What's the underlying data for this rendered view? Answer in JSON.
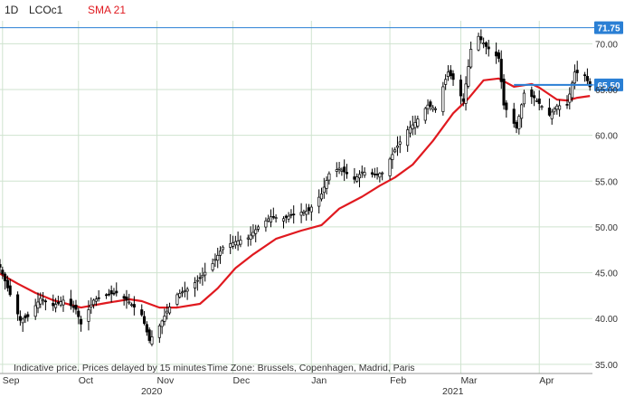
{
  "header": {
    "interval": "1D",
    "symbol": "LCOc1",
    "indicator": "SMA 21"
  },
  "footer": {
    "disclaimer": "Indicative price. Prices delayed by 15 minutes",
    "timezone": "Time Zone: Brussels, Copenhagen, Madrid, Paris"
  },
  "colors": {
    "sma": "#e0191f",
    "candle": "#000000",
    "grid": "#cfe3cf",
    "horizontal_line": "#2a7fd4",
    "axis_text": "#333333",
    "header_indicator": "#e0191f"
  },
  "chart_data": {
    "type": "candlestick",
    "ylim": [
      34,
      72.5
    ],
    "y_ticks": [
      "35.00",
      "40.00",
      "45.00",
      "50.00",
      "55.00",
      "60.00",
      "65.00",
      "70.00"
    ],
    "x_month_labels": [
      {
        "label": "Sep",
        "date": "2020-09-01"
      },
      {
        "label": "Oct",
        "date": "2020-10-01"
      },
      {
        "label": "Nov",
        "date": "2020-11-01"
      },
      {
        "label": "Dec",
        "date": "2020-12-01"
      },
      {
        "label": "Jan",
        "date": "2021-01-01"
      },
      {
        "label": "Feb",
        "date": "2021-02-01"
      },
      {
        "label": "Mar",
        "date": "2021-03-01"
      },
      {
        "label": "Apr",
        "date": "2021-04-01"
      }
    ],
    "x_year_labels": [
      {
        "label": "2020",
        "date": "2020-10-30"
      },
      {
        "label": "2021",
        "date": "2021-02-26"
      }
    ],
    "x_range": [
      "2020-08-31",
      "2021-04-22"
    ],
    "close_anchors": [
      [
        "2020-08-31",
        45.6
      ],
      [
        "2020-09-04",
        42.6
      ],
      [
        "2020-09-08",
        39.8
      ],
      [
        "2020-09-11",
        40.2
      ],
      [
        "2020-09-16",
        42.2
      ],
      [
        "2020-09-21",
        41.4
      ],
      [
        "2020-09-25",
        42.0
      ],
      [
        "2020-09-30",
        41.0
      ],
      [
        "2020-10-02",
        39.4
      ],
      [
        "2020-10-07",
        42.0
      ],
      [
        "2020-10-12",
        42.6
      ],
      [
        "2020-10-16",
        42.8
      ],
      [
        "2020-10-21",
        41.8
      ],
      [
        "2020-10-26",
        40.4
      ],
      [
        "2020-10-29",
        37.6
      ],
      [
        "2020-11-02",
        39.2
      ],
      [
        "2020-11-05",
        40.8
      ],
      [
        "2020-11-09",
        42.6
      ],
      [
        "2020-11-13",
        43.2
      ],
      [
        "2020-11-18",
        44.4
      ],
      [
        "2020-11-23",
        46.0
      ],
      [
        "2020-11-27",
        47.8
      ],
      [
        "2020-12-02",
        48.4
      ],
      [
        "2020-12-07",
        48.8
      ],
      [
        "2020-12-11",
        50.0
      ],
      [
        "2020-12-16",
        51.1
      ],
      [
        "2020-12-21",
        50.9
      ],
      [
        "2020-12-24",
        51.3
      ],
      [
        "2020-12-31",
        51.8
      ],
      [
        "2021-01-05",
        53.6
      ],
      [
        "2021-01-08",
        55.8
      ],
      [
        "2021-01-12",
        56.4
      ],
      [
        "2021-01-18",
        55.2
      ],
      [
        "2021-01-21",
        56.0
      ],
      [
        "2021-01-26",
        55.7
      ],
      [
        "2021-01-29",
        55.9
      ],
      [
        "2021-02-03",
        58.4
      ],
      [
        "2021-02-08",
        60.6
      ],
      [
        "2021-02-11",
        61.4
      ],
      [
        "2021-02-16",
        63.3
      ],
      [
        "2021-02-19",
        62.9
      ],
      [
        "2021-02-24",
        66.9
      ],
      [
        "2021-02-26",
        66.1
      ],
      [
        "2021-03-02",
        63.7
      ],
      [
        "2021-03-05",
        69.4
      ],
      [
        "2021-03-08",
        70.8
      ],
      [
        "2021-03-11",
        69.7
      ],
      [
        "2021-03-16",
        68.4
      ],
      [
        "2021-03-18",
        63.3
      ],
      [
        "2021-03-23",
        60.8
      ],
      [
        "2021-03-26",
        64.6
      ],
      [
        "2021-03-30",
        64.1
      ],
      [
        "2021-04-05",
        62.2
      ],
      [
        "2021-04-08",
        63.2
      ],
      [
        "2021-04-12",
        63.3
      ],
      [
        "2021-04-15",
        66.9
      ],
      [
        "2021-04-19",
        66.6
      ],
      [
        "2021-04-21",
        65.3
      ]
    ],
    "sma_series": {
      "name": "SMA 21",
      "points": [
        [
          "2020-08-31",
          44.9
        ],
        [
          "2020-09-07",
          43.8
        ],
        [
          "2020-09-14",
          42.8
        ],
        [
          "2020-09-21",
          42.0
        ],
        [
          "2020-10-02",
          41.2
        ],
        [
          "2020-10-12",
          41.7
        ],
        [
          "2020-10-21",
          42.1
        ],
        [
          "2020-10-26",
          41.9
        ],
        [
          "2020-11-02",
          41.2
        ],
        [
          "2020-11-09",
          41.2
        ],
        [
          "2020-11-18",
          41.6
        ],
        [
          "2020-11-25",
          43.3
        ],
        [
          "2020-12-02",
          45.5
        ],
        [
          "2020-12-09",
          47.0
        ],
        [
          "2020-12-18",
          48.7
        ],
        [
          "2020-12-28",
          49.6
        ],
        [
          "2021-01-05",
          50.2
        ],
        [
          "2021-01-12",
          52.0
        ],
        [
          "2021-01-21",
          53.3
        ],
        [
          "2021-01-28",
          54.5
        ],
        [
          "2021-02-03",
          55.4
        ],
        [
          "2021-02-10",
          56.8
        ],
        [
          "2021-02-18",
          59.4
        ],
        [
          "2021-02-26",
          62.4
        ],
        [
          "2021-03-04",
          64.0
        ],
        [
          "2021-03-10",
          66.0
        ],
        [
          "2021-03-16",
          66.2
        ],
        [
          "2021-03-22",
          65.3
        ],
        [
          "2021-03-29",
          65.6
        ],
        [
          "2021-04-01",
          65.2
        ],
        [
          "2021-04-08",
          63.9
        ],
        [
          "2021-04-12",
          63.8
        ],
        [
          "2021-04-16",
          64.1
        ],
        [
          "2021-04-21",
          64.3
        ]
      ]
    },
    "horizontal_lines": [
      {
        "label": "71.75",
        "value": 71.75,
        "from": "2020-08-31",
        "to": "2021-04-22"
      },
      {
        "label": "65.50",
        "value": 65.5,
        "from": "2021-03-22",
        "to": "2021-04-22"
      }
    ]
  }
}
